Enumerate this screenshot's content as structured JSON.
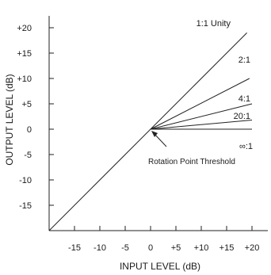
{
  "chart_data": {
    "type": "line",
    "xlabel": "INPUT LEVEL (dB)",
    "ylabel": "OUTPUT LEVEL (dB)",
    "xlim": [
      -20,
      25
    ],
    "ylim": [
      -20,
      25
    ],
    "xticks": [
      -15,
      -10,
      -5,
      0,
      5,
      10,
      15,
      20
    ],
    "xtick_labels": [
      "-15",
      "-10",
      "-5",
      "0",
      "+5",
      "+10",
      "+15",
      "+20"
    ],
    "yticks": [
      -15,
      -10,
      -5,
      0,
      5,
      10,
      15,
      20
    ],
    "ytick_labels": [
      "-15",
      "-10",
      "-5",
      "0",
      "+5",
      "+10",
      "+15",
      "+20"
    ],
    "grid": false,
    "series": [
      {
        "name": "1:1 Unity",
        "x": [
          -20,
          19
        ],
        "y": [
          -20,
          19
        ]
      },
      {
        "name": "2:1",
        "x": [
          0,
          19.5
        ],
        "y": [
          0,
          10
        ]
      },
      {
        "name": "4:1",
        "x": [
          0,
          20
        ],
        "y": [
          0,
          5
        ]
      },
      {
        "name": "20:1",
        "x": [
          0,
          20
        ],
        "y": [
          0,
          1.8
        ]
      },
      {
        "name": "∞:1",
        "x": [
          0,
          20
        ],
        "y": [
          0,
          0
        ]
      }
    ],
    "annotations": [
      {
        "text": "Rotation Point Threshold",
        "points_to": [
          0,
          0
        ]
      }
    ]
  }
}
